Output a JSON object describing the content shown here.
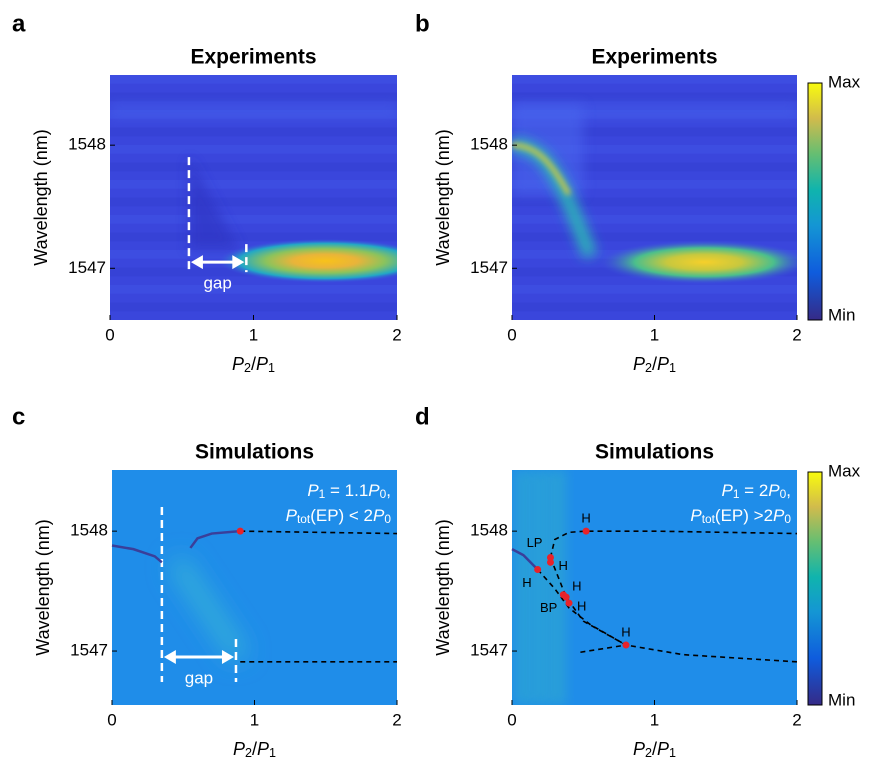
{
  "chart_data": [
    {
      "type": "heatmap",
      "label": "a",
      "title": "Experiments",
      "style": "experiment-a",
      "ylabel": "Wavelength (nm)",
      "xlabel": [
        {
          "text": "P",
          "italic": true
        },
        {
          "text": "2",
          "sub": true
        },
        {
          "text": "/"
        },
        {
          "text": "P",
          "italic": true
        },
        {
          "text": "1",
          "sub": true
        }
      ],
      "xlim": [
        0,
        2
      ],
      "xticks": [
        0,
        1,
        2
      ],
      "ylim": [
        1546.58,
        1548.57
      ],
      "yticks": [
        1547,
        1548
      ],
      "gap": {
        "text": "gap",
        "x": [
          0.55,
          0.95
        ],
        "y": 1547.05
      }
    },
    {
      "type": "heatmap",
      "label": "b",
      "title": "Experiments",
      "style": "experiment-b",
      "ylabel": "Wavelength (nm)",
      "xlabel": [
        {
          "text": "P",
          "italic": true
        },
        {
          "text": "2",
          "sub": true
        },
        {
          "text": "/"
        },
        {
          "text": "P",
          "italic": true
        },
        {
          "text": "1",
          "sub": true
        }
      ],
      "xlim": [
        0,
        2
      ],
      "xticks": [
        0,
        1,
        2
      ],
      "ylim": [
        1546.58,
        1548.57
      ],
      "yticks": [
        1547,
        1548
      ],
      "colorbar": {
        "max": "Max",
        "min": "Min"
      }
    },
    {
      "type": "heatmap",
      "label": "c",
      "title": "Simulations",
      "style": "simulation-c",
      "ylabel": "Wavelength (nm)",
      "xlabel": [
        {
          "text": "P",
          "italic": true
        },
        {
          "text": "2",
          "sub": true
        },
        {
          "text": "/"
        },
        {
          "text": "P",
          "italic": true
        },
        {
          "text": "1",
          "sub": true
        }
      ],
      "xlim": [
        0,
        2
      ],
      "xticks": [
        0,
        1,
        2
      ],
      "ylim": [
        1546.55,
        1548.51
      ],
      "yticks": [
        1547,
        1548
      ],
      "note": [
        [
          {
            "text": "P",
            "italic": true
          },
          {
            "text": "1",
            "sub": true
          },
          {
            "text": " = 1.1"
          },
          {
            "text": "P",
            "italic": true
          },
          {
            "text": "0",
            "sub": true
          },
          {
            "text": ","
          }
        ],
        [
          {
            "text": "P",
            "italic": true
          },
          {
            "text": "tot",
            "sub": true
          },
          {
            "text": "(EP) < 2"
          },
          {
            "text": "P",
            "italic": true
          },
          {
            "text": "0",
            "sub": true
          }
        ]
      ],
      "gap": {
        "text": "gap",
        "x": [
          0.35,
          0.87
        ],
        "y": 1546.95
      },
      "series": [
        {
          "color": "#3a3f9a",
          "dash": false,
          "x": [
            0,
            0.15,
            0.3,
            0.35
          ],
          "values": [
            1547.88,
            1547.85,
            1547.79,
            1547.74
          ]
        },
        {
          "color": "#3a3f9a",
          "dash": false,
          "x": [
            0.55,
            0.6,
            0.7,
            0.9
          ],
          "values": [
            1547.86,
            1547.94,
            1547.98,
            1548.0
          ]
        },
        {
          "color": "#000000",
          "dash": true,
          "x": [
            0.9,
            2
          ],
          "values": [
            1548.0,
            1547.98
          ]
        },
        {
          "color": "#000000",
          "dash": true,
          "x": [
            0.9,
            2
          ],
          "values": [
            1546.91,
            1546.91
          ]
        }
      ],
      "points": [
        {
          "x": 0.9,
          "y": 1548.0
        }
      ]
    },
    {
      "type": "heatmap",
      "label": "d",
      "title": "Simulations",
      "style": "simulation-d",
      "ylabel": "Wavelength (nm)",
      "xlabel": [
        {
          "text": "P",
          "italic": true
        },
        {
          "text": "2",
          "sub": true
        },
        {
          "text": "/"
        },
        {
          "text": "P",
          "italic": true
        },
        {
          "text": "1",
          "sub": true
        }
      ],
      "xlim": [
        0,
        2
      ],
      "xticks": [
        0,
        1,
        2
      ],
      "ylim": [
        1546.55,
        1548.51
      ],
      "yticks": [
        1547,
        1548
      ],
      "colorbar": {
        "max": "Max",
        "min": "Min"
      },
      "note": [
        [
          {
            "text": "P",
            "italic": true
          },
          {
            "text": "1",
            "sub": true
          },
          {
            "text": " = 2"
          },
          {
            "text": "P",
            "italic": true
          },
          {
            "text": "0",
            "sub": true
          },
          {
            "text": ","
          }
        ],
        [
          {
            "text": "P",
            "italic": true
          },
          {
            "text": "tot",
            "sub": true
          },
          {
            "text": "(EP) >2"
          },
          {
            "text": "P",
            "italic": true
          },
          {
            "text": "0",
            "sub": true
          }
        ]
      ],
      "series": [
        {
          "color": "#3a3f9a",
          "dash": false,
          "x": [
            0,
            0.08,
            0.18
          ],
          "values": [
            1547.85,
            1547.8,
            1547.68
          ]
        },
        {
          "color": "#000000",
          "dash": true,
          "x": [
            0.27,
            0.3,
            0.4,
            0.52,
            1,
            2
          ],
          "values": [
            1547.78,
            1547.93,
            1547.99,
            1548.0,
            1548.0,
            1547.98
          ]
        },
        {
          "color": "#000000",
          "dash": true,
          "x": [
            0.27,
            0.38,
            0.5,
            0.8,
            1.2,
            2
          ],
          "values": [
            1547.78,
            1547.45,
            1547.25,
            1547.05,
            1546.97,
            1546.91
          ]
        },
        {
          "color": "#000000",
          "dash": true,
          "x": [
            0.18,
            0.3,
            0.4,
            0.55,
            0.8
          ],
          "values": [
            1547.68,
            1547.52,
            1547.36,
            1547.22,
            1547.05
          ]
        },
        {
          "color": "#000000",
          "dash": true,
          "x": [
            0.48,
            0.8
          ],
          "values": [
            1546.99,
            1547.05
          ]
        }
      ],
      "points": [
        {
          "x": 0.52,
          "y": 1548.0,
          "label": "H",
          "side": "above"
        },
        {
          "x": 0.27,
          "y": 1547.78,
          "label": "LP",
          "side": "above-left"
        },
        {
          "x": 0.27,
          "y": 1547.74,
          "label": "H",
          "side": "right"
        },
        {
          "x": 0.18,
          "y": 1547.68,
          "label": "H",
          "side": "below-left"
        },
        {
          "x": 0.36,
          "y": 1547.47,
          "label": "BP",
          "side": "below-left"
        },
        {
          "x": 0.38,
          "y": 1547.45,
          "label": "H",
          "side": "above-right"
        },
        {
          "x": 0.4,
          "y": 1547.4,
          "label": "H",
          "side": "right"
        },
        {
          "x": 0.8,
          "y": 1547.05,
          "label": "H",
          "side": "above"
        }
      ]
    }
  ]
}
